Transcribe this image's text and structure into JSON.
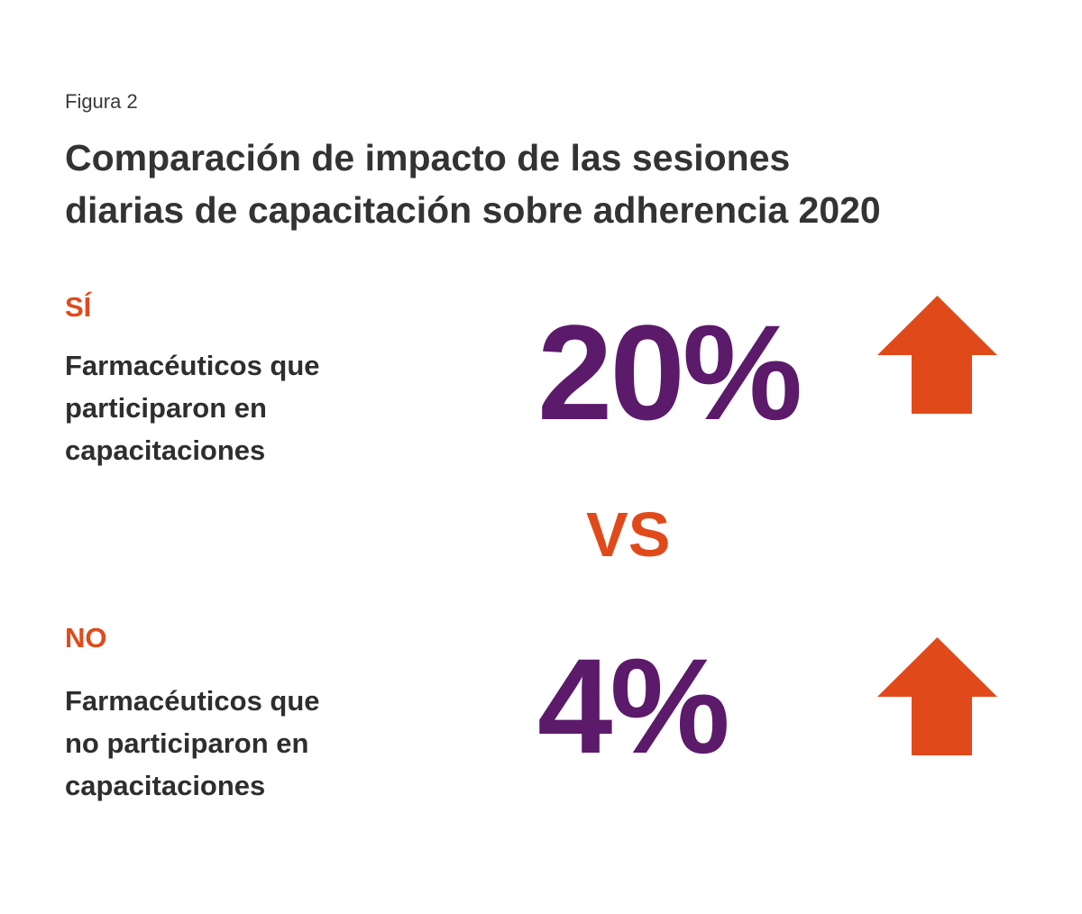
{
  "figure_label": "Figura 2",
  "title_lines": [
    "Comparación de impacto de las sesiones",
    "diarias de capacitación sobre adherencia 2020"
  ],
  "colors": {
    "accent": "#e04a1b",
    "purple": "#5c1a6b",
    "text": "#333333"
  },
  "chart_data": {
    "type": "table",
    "title": "Comparación de impacto de las sesiones diarias de capacitación sobre adherencia 2020",
    "separator": "VS",
    "rows": [
      {
        "label": "SÍ",
        "description_lines": [
          "Farmacéuticos que",
          "participaron en",
          "capacitaciones"
        ],
        "value": 20,
        "value_text": "20%",
        "trend": "up",
        "trend_icon": "arrow-up-icon"
      },
      {
        "label": "NO",
        "description_lines": [
          "Farmacéuticos que",
          "no participaron en",
          "capacitaciones"
        ],
        "value": 4,
        "value_text": "4%",
        "trend": "up",
        "trend_icon": "arrow-up-icon"
      }
    ]
  }
}
